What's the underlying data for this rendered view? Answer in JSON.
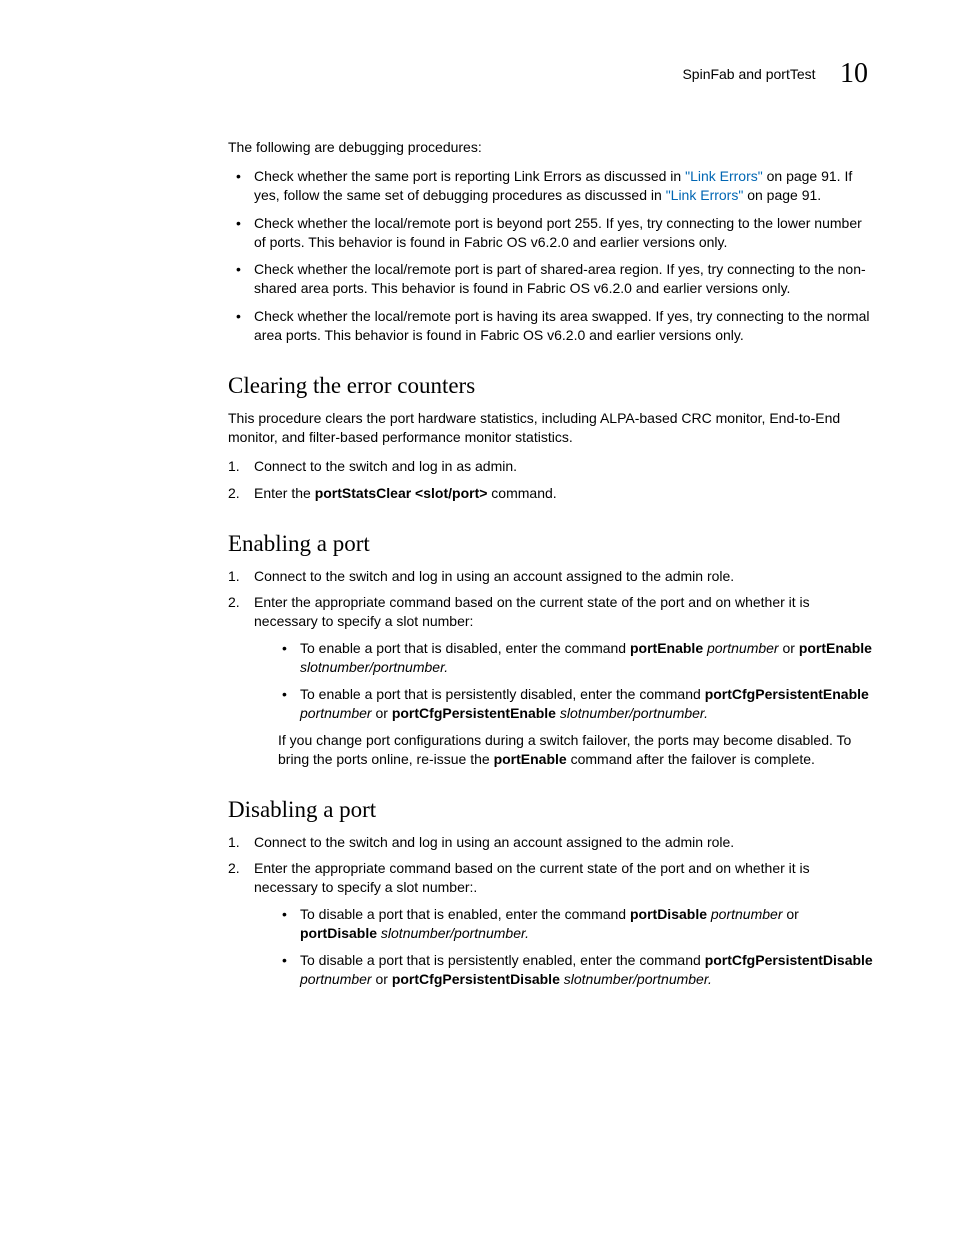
{
  "header": {
    "title": "SpinFab and portTest",
    "chapter": "10"
  },
  "intro": "The following are debugging procedures:",
  "topBullets": [
    {
      "pre": "Check whether the same port is reporting Link Errors as discussed in ",
      "link1": "\"Link Errors\"",
      "mid": " on page 91. If yes, follow the same set of debugging procedures as discussed in ",
      "link2": "\"Link Errors\"",
      "post": " on page 91."
    },
    {
      "text": "Check whether the local/remote port is beyond port 255. If yes, try connecting to the lower number of ports. This behavior is found in Fabric OS v6.2.0 and earlier versions only."
    },
    {
      "text": "Check whether the local/remote port is part of shared-area region. If yes, try connecting to the non-shared area ports. This behavior is found in Fabric OS v6.2.0 and earlier versions only."
    },
    {
      "text": "Check whether the local/remote port is having its area swapped. If yes, try connecting to the normal area ports. This behavior is found in Fabric OS v6.2.0 and earlier versions only."
    }
  ],
  "section1": {
    "heading": "Clearing the error counters",
    "body": "This procedure clears the port hardware statistics, including ALPA-based CRC monitor, End-to-End monitor, and filter-based performance monitor statistics.",
    "steps": {
      "s1": "Connect to the switch and log in as admin.",
      "s2_pre": "Enter the ",
      "s2_cmd": "portStatsClear <slot/port>",
      "s2_post": " command."
    }
  },
  "section2": {
    "heading": "Enabling a port",
    "s1": "Connect to the switch and log in using an account assigned to the admin role.",
    "s2": "Enter the appropriate command based on the current state of the port and on whether it is necessary to specify a slot number:",
    "sub1_pre": "To enable a port that is disabled, enter the command ",
    "sub1_cmd1": "portEnable",
    "sub1_arg1": " portnumber",
    "sub1_or": " or ",
    "sub1_cmd2": "portEnable",
    "sub1_arg2": " slotnumber/portnumber.",
    "sub2_pre": "To enable a port that is persistently disabled, enter the command ",
    "sub2_cmd1": "portCfgPersistentEnable",
    "sub2_arg1": " portnumber",
    "sub2_or": " or ",
    "sub2_cmd2": "portCfgPersistentEnable",
    "sub2_arg2": " slotnumber/portnumber.",
    "follow_pre": "If you change port configurations during a switch failover, the ports may become disabled. To bring the ports online, re-issue the ",
    "follow_cmd": "portEnable",
    "follow_post": " command after the failover is complete."
  },
  "section3": {
    "heading": "Disabling a port",
    "s1": "Connect to the switch and log in using an account assigned to the admin role.",
    "s2": "Enter the appropriate command based on the current state of the port and on whether it is necessary to specify a slot number:.",
    "sub1_pre": "To disable a port that is enabled, enter the command ",
    "sub1_cmd1": "portDisable",
    "sub1_arg1": " portnumber",
    "sub1_or": " or ",
    "sub1_cmd2": "portDisable",
    "sub1_arg2": " slotnumber/portnumber.",
    "sub2_pre": "To disable a port that is persistently enabled, enter the command ",
    "sub2_cmd1": "portCfgPersistentDisable",
    "sub2_arg1": " portnumber",
    "sub2_or": " or ",
    "sub2_cmd2": "portCfgPersistentDisable",
    "sub2_arg2": " slotnumber/portnumber."
  }
}
